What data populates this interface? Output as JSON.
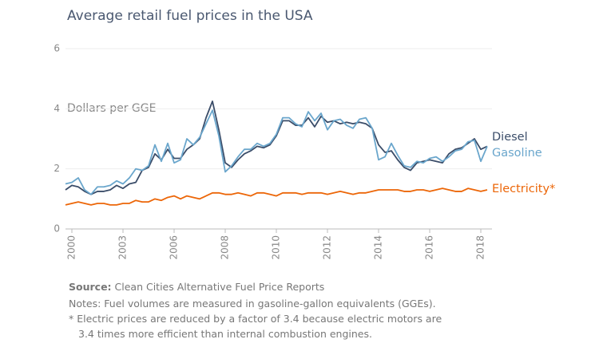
{
  "chart_data": {
    "type": "line",
    "title": "Average retail fuel prices in the USA",
    "y_label": "Dollars per GGE",
    "categories": [
      null,
      "2000",
      null,
      null,
      null,
      null,
      null,
      null,
      null,
      "2003",
      null,
      null,
      null,
      null,
      null,
      null,
      null,
      "2006",
      null,
      null,
      null,
      null,
      null,
      null,
      null,
      "2008",
      null,
      null,
      null,
      null,
      null,
      null,
      null,
      "2010",
      null,
      null,
      null,
      null,
      null,
      null,
      null,
      "2012",
      null,
      null,
      null,
      null,
      null,
      null,
      null,
      "2014",
      null,
      null,
      null,
      null,
      null,
      null,
      null,
      "2016",
      null,
      null,
      null,
      null,
      null,
      null,
      null,
      "2018",
      null
    ],
    "ylim": [
      0,
      6
    ],
    "yticks": [
      0,
      2,
      4,
      6
    ],
    "grid": true,
    "series": [
      {
        "name": "Diesel",
        "color": "#3b4d69",
        "values": [
          1.3,
          1.45,
          1.4,
          1.25,
          1.15,
          1.25,
          1.25,
          1.3,
          1.45,
          1.35,
          1.5,
          1.55,
          1.95,
          2.05,
          2.5,
          2.3,
          2.65,
          2.35,
          2.35,
          2.65,
          2.8,
          3.0,
          3.7,
          4.25,
          3.3,
          2.2,
          2.05,
          2.3,
          2.5,
          2.6,
          2.75,
          2.7,
          2.8,
          3.1,
          3.6,
          3.6,
          3.45,
          3.45,
          3.7,
          3.4,
          3.75,
          3.55,
          3.6,
          3.5,
          3.55,
          3.5,
          3.55,
          3.5,
          3.35,
          2.8,
          2.55,
          2.6,
          2.3,
          2.05,
          1.95,
          2.2,
          2.25,
          2.3,
          2.25,
          2.2,
          2.5,
          2.65,
          2.7,
          2.85,
          3.0,
          2.65,
          2.75
        ]
      },
      {
        "name": "Gasoline",
        "color": "#6aa6cc",
        "values": [
          1.5,
          1.55,
          1.7,
          1.3,
          1.15,
          1.4,
          1.4,
          1.45,
          1.6,
          1.5,
          1.7,
          2.0,
          1.95,
          2.1,
          2.8,
          2.25,
          2.85,
          2.2,
          2.3,
          3.0,
          2.8,
          3.05,
          3.5,
          3.95,
          3.1,
          1.9,
          2.1,
          2.4,
          2.65,
          2.65,
          2.85,
          2.75,
          2.85,
          3.15,
          3.7,
          3.7,
          3.5,
          3.4,
          3.9,
          3.6,
          3.85,
          3.3,
          3.6,
          3.65,
          3.45,
          3.35,
          3.65,
          3.7,
          3.35,
          2.3,
          2.4,
          2.85,
          2.45,
          2.1,
          2.05,
          2.25,
          2.2,
          2.35,
          2.4,
          2.25,
          2.4,
          2.6,
          2.65,
          2.9,
          2.95,
          2.25,
          2.75
        ]
      },
      {
        "name": "Electricity*",
        "color": "#ec6608",
        "values": [
          0.8,
          0.85,
          0.9,
          0.85,
          0.8,
          0.85,
          0.85,
          0.8,
          0.8,
          0.85,
          0.85,
          0.95,
          0.9,
          0.9,
          1.0,
          0.95,
          1.05,
          1.1,
          1.0,
          1.1,
          1.05,
          1.0,
          1.1,
          1.2,
          1.2,
          1.15,
          1.15,
          1.2,
          1.15,
          1.1,
          1.2,
          1.2,
          1.15,
          1.1,
          1.2,
          1.2,
          1.2,
          1.15,
          1.2,
          1.2,
          1.2,
          1.15,
          1.2,
          1.25,
          1.2,
          1.15,
          1.2,
          1.2,
          1.25,
          1.3,
          1.3,
          1.3,
          1.3,
          1.25,
          1.25,
          1.3,
          1.3,
          1.25,
          1.3,
          1.35,
          1.3,
          1.25,
          1.25,
          1.35,
          1.3,
          1.25,
          1.3
        ]
      }
    ],
    "source": {
      "label": "Source:",
      "text": "Clean Cities Alternative Fuel Price Reports"
    },
    "notes": [
      "Notes: Fuel volumes are measured in gasoline-gallon equivalents (GGEs).",
      "* Electric prices are reduced by a factor of 3.4 because electric motors are",
      "3.4 times more efficient than internal combustion engines."
    ]
  }
}
